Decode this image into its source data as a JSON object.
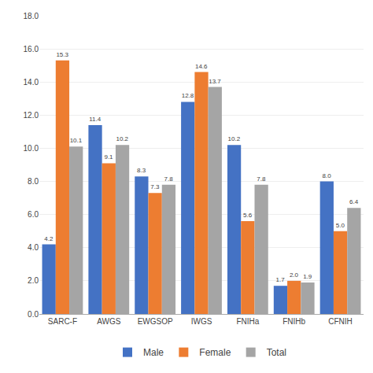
{
  "chart_data": {
    "type": "bar",
    "categories": [
      "SARC-F",
      "AWGS",
      "EWGSOP",
      "IWGS",
      "FNIHa",
      "FNIHb",
      "CFNIH"
    ],
    "series": [
      {
        "name": "Male",
        "color": "#4472C4",
        "values": [
          4.2,
          11.4,
          8.3,
          12.8,
          10.2,
          1.7,
          8.0
        ],
        "value_labels": [
          "4.2",
          "11.4",
          "8.3",
          "12.8",
          "10.2",
          "1.7",
          "8.0"
        ]
      },
      {
        "name": "Female",
        "color": "#ED7D31",
        "values": [
          15.3,
          9.1,
          7.3,
          14.6,
          5.6,
          2.0,
          5.0
        ],
        "value_labels": [
          "15.3",
          "9.1",
          "7.3",
          "14.6",
          "5.6",
          "2.0",
          "5.0"
        ]
      },
      {
        "name": "Total",
        "color": "#A5A5A5",
        "values": [
          10.1,
          10.2,
          7.8,
          13.7,
          7.8,
          1.9,
          6.4
        ],
        "value_labels": [
          "10.1",
          "10.2",
          "7.8",
          "13.7",
          "7.8",
          "1.9",
          "6.4"
        ]
      }
    ],
    "ylim": [
      0,
      18
    ],
    "yticks": [
      {
        "value": 0,
        "label": "0.0"
      },
      {
        "value": 2,
        "label": "2.0"
      },
      {
        "value": 4,
        "label": "4.0"
      },
      {
        "value": 6,
        "label": "6.0"
      },
      {
        "value": 8,
        "label": "8.0"
      },
      {
        "value": 10,
        "label": "10.0"
      },
      {
        "value": 12,
        "label": "12.0"
      },
      {
        "value": 14,
        "label": "14.0"
      },
      {
        "value": 16,
        "label": "16.0"
      },
      {
        "value": 18,
        "label": "18.0"
      }
    ],
    "grid": true,
    "legend": "bottom",
    "data_labels": true
  }
}
